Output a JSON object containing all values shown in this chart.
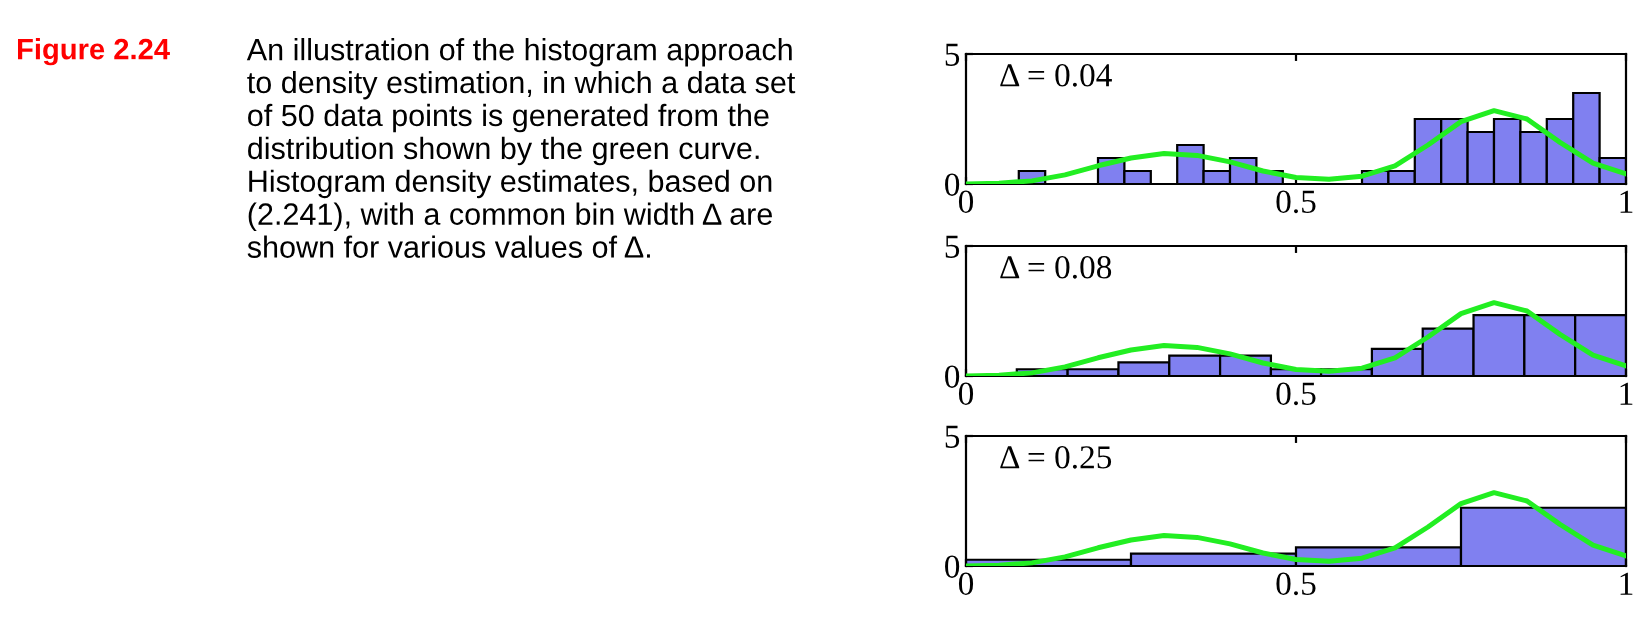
{
  "chart_data": [
    {
      "type": "other",
      "title": "Figure 2.24",
      "annotations": [
        "An illustration of the histogram approach\nto density estimation, in which a data set\nof 50 data points is generated from the\ndistribution shown by the green curve.\nHistogram density estimates, based on\n(2.241), with a common bin width Δ are\nshown for various values of Δ."
      ]
    },
    {
      "type": "histogram",
      "annotations": [
        "Δ = 0.04"
      ],
      "xlim": [
        0,
        1
      ],
      "ylim": [
        0,
        5
      ],
      "xticks": [
        0,
        0.5,
        1
      ],
      "yticks": [
        0,
        5
      ],
      "grid": false,
      "series": [
        {
          "type": "histogram",
          "color": "#8080f0",
          "bins": [
            0,
            0.04,
            0.08,
            0.12,
            0.16,
            0.2,
            0.24,
            0.28,
            0.32,
            0.36,
            0.4,
            0.44,
            0.48,
            0.52,
            0.56,
            0.6,
            0.64,
            0.68,
            0.72,
            0.76,
            0.8,
            0.84,
            0.88,
            0.92,
            0.96,
            1
          ],
          "values": [
            0,
            0,
            0.5,
            0,
            0,
            1,
            0.5,
            0,
            1.5,
            0.5,
            1,
            0.5,
            0,
            0,
            0,
            0.5,
            0.5,
            2.5,
            2.5,
            2,
            2.5,
            2,
            2.5,
            3.5,
            1
          ]
        },
        {
          "type": "line",
          "color": "#22ee22",
          "x": [
            0,
            0.05,
            0.1,
            0.15,
            0.2,
            0.25,
            0.3,
            0.35,
            0.4,
            0.45,
            0.5,
            0.55,
            0.6,
            0.65,
            0.7,
            0.75,
            0.8,
            0.85,
            0.9,
            0.95,
            1
          ],
          "values": [
            0,
            0.03,
            0.12,
            0.35,
            0.7,
            1.0,
            1.17,
            1.1,
            0.85,
            0.5,
            0.25,
            0.18,
            0.3,
            0.7,
            1.5,
            2.4,
            2.82,
            2.5,
            1.6,
            0.8,
            0.39
          ]
        }
      ]
    },
    {
      "type": "histogram",
      "annotations": [
        "Δ = 0.08"
      ],
      "xlim": [
        0,
        1
      ],
      "ylim": [
        0,
        5
      ],
      "xticks": [
        0,
        0.5,
        1
      ],
      "yticks": [
        0,
        5
      ],
      "grid": false,
      "series": [
        {
          "type": "histogram",
          "color": "#8080f0",
          "bins": [
            0.077,
            0.154,
            0.231,
            0.308,
            0.385,
            0.462,
            0.538,
            0.615,
            0.692,
            0.769,
            0.846,
            0.923,
            1
          ],
          "values": [
            0.26,
            0.26,
            0.52,
            0.78,
            0.78,
            0.26,
            0.26,
            1.04,
            1.82,
            2.34,
            2.34,
            2.34
          ]
        },
        {
          "type": "line",
          "color": "#22ee22",
          "x": [
            0,
            0.05,
            0.1,
            0.15,
            0.2,
            0.25,
            0.3,
            0.35,
            0.4,
            0.45,
            0.5,
            0.55,
            0.6,
            0.65,
            0.7,
            0.75,
            0.8,
            0.85,
            0.9,
            0.95,
            1
          ],
          "values": [
            0,
            0.03,
            0.12,
            0.35,
            0.7,
            1.0,
            1.17,
            1.1,
            0.85,
            0.5,
            0.25,
            0.18,
            0.3,
            0.7,
            1.5,
            2.4,
            2.82,
            2.5,
            1.6,
            0.8,
            0.39
          ]
        }
      ]
    },
    {
      "type": "histogram",
      "annotations": [
        "Δ = 0.25"
      ],
      "xlim": [
        0,
        1
      ],
      "ylim": [
        0,
        5
      ],
      "xticks": [
        0,
        0.5,
        1
      ],
      "yticks": [
        0,
        5
      ],
      "grid": false,
      "series": [
        {
          "type": "histogram",
          "color": "#8080f0",
          "bins": [
            0,
            0.25,
            0.5,
            0.75,
            1
          ],
          "values": [
            0.24,
            0.48,
            0.72,
            2.24
          ]
        },
        {
          "type": "line",
          "color": "#22ee22",
          "x": [
            0,
            0.05,
            0.1,
            0.15,
            0.2,
            0.25,
            0.3,
            0.35,
            0.4,
            0.45,
            0.5,
            0.55,
            0.6,
            0.65,
            0.7,
            0.75,
            0.8,
            0.85,
            0.9,
            0.95,
            1
          ],
          "values": [
            0,
            0.03,
            0.12,
            0.35,
            0.7,
            1.0,
            1.17,
            1.1,
            0.85,
            0.5,
            0.25,
            0.18,
            0.3,
            0.7,
            1.5,
            2.4,
            2.82,
            2.5,
            1.6,
            0.8,
            0.39
          ]
        }
      ]
    }
  ]
}
